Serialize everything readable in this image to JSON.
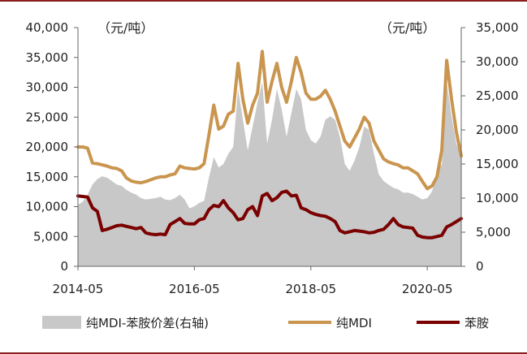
{
  "chart_data": {
    "type": "line",
    "title": "",
    "left_unit": "（元/吨）",
    "right_unit": "（元/吨）",
    "x_tick_labels": [
      "2014-05",
      "2016-05",
      "2018-05",
      "2020-05"
    ],
    "x_tick_months": [
      0,
      24,
      48,
      72
    ],
    "x_range_months": [
      0,
      79
    ],
    "y_left": {
      "min": 0,
      "max": 40000,
      "ticks": [
        0,
        5000,
        10000,
        15000,
        20000,
        25000,
        30000,
        35000,
        40000
      ],
      "tick_labels": [
        "0",
        "5,000",
        "10,000",
        "15,000",
        "20,000",
        "25,000",
        "30,000",
        "35,000",
        "40,000"
      ]
    },
    "y_right": {
      "min": 0,
      "max": 35000,
      "ticks": [
        0,
        5000,
        10000,
        15000,
        20000,
        25000,
        30000,
        35000
      ],
      "tick_labels": [
        "0",
        "5,000",
        "10,000",
        "15,000",
        "20,000",
        "25,000",
        "30,000",
        "35,000"
      ]
    },
    "colors": {
      "spread": "#c8c8c8",
      "pure_mdi": "#c9954f",
      "aniline": "#7b0000",
      "frame": "#8a1f1f",
      "axis": "#666666"
    },
    "series": [
      {
        "name": "纯MDI-苯胺价差(右轴)",
        "axis": "right",
        "style": "area",
        "color_key": "spread",
        "points": [
          [
            0,
            9000
          ],
          [
            1,
            9500
          ],
          [
            2,
            10500
          ],
          [
            3,
            12000
          ],
          [
            4,
            12800
          ],
          [
            5,
            13200
          ],
          [
            6,
            13000
          ],
          [
            7,
            12500
          ],
          [
            8,
            12000
          ],
          [
            9,
            11800
          ],
          [
            10,
            11200
          ],
          [
            11,
            10800
          ],
          [
            12,
            10500
          ],
          [
            13,
            10000
          ],
          [
            14,
            9800
          ],
          [
            15,
            9900
          ],
          [
            16,
            10000
          ],
          [
            17,
            10200
          ],
          [
            18,
            9800
          ],
          [
            19,
            9700
          ],
          [
            20,
            10000
          ],
          [
            21,
            10500
          ],
          [
            22,
            9800
          ],
          [
            23,
            8500
          ],
          [
            24,
            8800
          ],
          [
            25,
            9300
          ],
          [
            26,
            9600
          ],
          [
            27,
            13000
          ],
          [
            28,
            16000
          ],
          [
            29,
            14500
          ],
          [
            30,
            15000
          ],
          [
            31,
            16500
          ],
          [
            32,
            17500
          ],
          [
            33,
            26000
          ],
          [
            34,
            21500
          ],
          [
            35,
            17000
          ],
          [
            36,
            20500
          ],
          [
            37,
            24000
          ],
          [
            38,
            27000
          ],
          [
            39,
            18000
          ],
          [
            40,
            21500
          ],
          [
            41,
            26000
          ],
          [
            42,
            23000
          ],
          [
            43,
            19000
          ],
          [
            44,
            22500
          ],
          [
            45,
            26000
          ],
          [
            46,
            24500
          ],
          [
            47,
            20000
          ],
          [
            48,
            18500
          ],
          [
            49,
            18000
          ],
          [
            50,
            19000
          ],
          [
            51,
            21500
          ],
          [
            52,
            22000
          ],
          [
            53,
            21500
          ],
          [
            54,
            19000
          ],
          [
            55,
            15000
          ],
          [
            56,
            14000
          ],
          [
            57,
            15500
          ],
          [
            58,
            17500
          ],
          [
            59,
            20500
          ],
          [
            60,
            20000
          ],
          [
            61,
            16500
          ],
          [
            62,
            13500
          ],
          [
            63,
            12500
          ],
          [
            64,
            12000
          ],
          [
            65,
            11500
          ],
          [
            66,
            11300
          ],
          [
            67,
            10800
          ],
          [
            68,
            10800
          ],
          [
            69,
            10600
          ],
          [
            70,
            10200
          ],
          [
            71,
            9800
          ],
          [
            72,
            10000
          ],
          [
            73,
            11000
          ],
          [
            74,
            14000
          ],
          [
            75,
            15000
          ],
          [
            76,
            27000
          ],
          [
            77,
            22000
          ],
          [
            78,
            18000
          ],
          [
            79,
            16000
          ]
        ]
      },
      {
        "name": "纯MDI",
        "axis": "left",
        "style": "line",
        "color_key": "pure_mdi",
        "points": [
          [
            0,
            20000
          ],
          [
            1,
            20000
          ],
          [
            2,
            19800
          ],
          [
            3,
            17300
          ],
          [
            4,
            17200
          ],
          [
            5,
            17000
          ],
          [
            6,
            16800
          ],
          [
            7,
            16500
          ],
          [
            8,
            16400
          ],
          [
            9,
            16000
          ],
          [
            10,
            14800
          ],
          [
            11,
            14300
          ],
          [
            12,
            14100
          ],
          [
            13,
            14000
          ],
          [
            14,
            14200
          ],
          [
            15,
            14500
          ],
          [
            16,
            14800
          ],
          [
            17,
            15000
          ],
          [
            18,
            15000
          ],
          [
            19,
            15300
          ],
          [
            20,
            15500
          ],
          [
            21,
            16800
          ],
          [
            22,
            16500
          ],
          [
            23,
            16400
          ],
          [
            24,
            16300
          ],
          [
            25,
            16500
          ],
          [
            26,
            17200
          ],
          [
            27,
            22000
          ],
          [
            28,
            27000
          ],
          [
            29,
            23000
          ],
          [
            30,
            23500
          ],
          [
            31,
            25500
          ],
          [
            32,
            26000
          ],
          [
            33,
            34000
          ],
          [
            34,
            28000
          ],
          [
            35,
            24000
          ],
          [
            36,
            27000
          ],
          [
            37,
            29000
          ],
          [
            38,
            36000
          ],
          [
            39,
            27500
          ],
          [
            40,
            31000
          ],
          [
            41,
            34000
          ],
          [
            42,
            30000
          ],
          [
            43,
            27500
          ],
          [
            44,
            31000
          ],
          [
            45,
            35000
          ],
          [
            46,
            32500
          ],
          [
            47,
            29000
          ],
          [
            48,
            28000
          ],
          [
            49,
            28000
          ],
          [
            50,
            28500
          ],
          [
            51,
            29500
          ],
          [
            52,
            28000
          ],
          [
            53,
            26000
          ],
          [
            54,
            23500
          ],
          [
            55,
            21000
          ],
          [
            56,
            20000
          ],
          [
            57,
            21500
          ],
          [
            58,
            23000
          ],
          [
            59,
            25000
          ],
          [
            60,
            24000
          ],
          [
            61,
            21000
          ],
          [
            62,
            19500
          ],
          [
            63,
            18000
          ],
          [
            64,
            17500
          ],
          [
            65,
            17200
          ],
          [
            66,
            17000
          ],
          [
            67,
            16500
          ],
          [
            68,
            16500
          ],
          [
            69,
            16000
          ],
          [
            70,
            15500
          ],
          [
            71,
            14200
          ],
          [
            72,
            13000
          ],
          [
            73,
            13500
          ],
          [
            74,
            15000
          ],
          [
            75,
            19500
          ],
          [
            76,
            34500
          ],
          [
            77,
            28000
          ],
          [
            78,
            22500
          ],
          [
            79,
            18500
          ]
        ]
      },
      {
        "name": "苯胺",
        "axis": "left",
        "style": "line",
        "color_key": "aniline",
        "points": [
          [
            0,
            11800
          ],
          [
            1,
            11700
          ],
          [
            2,
            11600
          ],
          [
            3,
            9800
          ],
          [
            4,
            9200
          ],
          [
            5,
            6000
          ],
          [
            6,
            6200
          ],
          [
            7,
            6500
          ],
          [
            8,
            6800
          ],
          [
            9,
            6900
          ],
          [
            10,
            6700
          ],
          [
            11,
            6500
          ],
          [
            12,
            6300
          ],
          [
            13,
            6500
          ],
          [
            14,
            5600
          ],
          [
            15,
            5400
          ],
          [
            16,
            5300
          ],
          [
            17,
            5400
          ],
          [
            18,
            5300
          ],
          [
            19,
            7000
          ],
          [
            20,
            7500
          ],
          [
            21,
            8000
          ],
          [
            22,
            7200
          ],
          [
            23,
            7100
          ],
          [
            24,
            7100
          ],
          [
            25,
            7800
          ],
          [
            26,
            8000
          ],
          [
            27,
            9500
          ],
          [
            28,
            10200
          ],
          [
            29,
            10000
          ],
          [
            30,
            11000
          ],
          [
            31,
            9800
          ],
          [
            32,
            9000
          ],
          [
            33,
            7800
          ],
          [
            34,
            8000
          ],
          [
            35,
            9500
          ],
          [
            36,
            10000
          ],
          [
            37,
            8500
          ],
          [
            38,
            11800
          ],
          [
            39,
            12200
          ],
          [
            40,
            11000
          ],
          [
            41,
            11500
          ],
          [
            42,
            12400
          ],
          [
            43,
            12600
          ],
          [
            44,
            11800
          ],
          [
            45,
            11900
          ],
          [
            46,
            9800
          ],
          [
            47,
            9500
          ],
          [
            48,
            9000
          ],
          [
            49,
            8700
          ],
          [
            50,
            8500
          ],
          [
            51,
            8400
          ],
          [
            52,
            8000
          ],
          [
            53,
            7500
          ],
          [
            54,
            6000
          ],
          [
            55,
            5600
          ],
          [
            56,
            5800
          ],
          [
            57,
            6000
          ],
          [
            58,
            5900
          ],
          [
            59,
            5800
          ],
          [
            60,
            5600
          ],
          [
            61,
            5700
          ],
          [
            62,
            6000
          ],
          [
            63,
            6200
          ],
          [
            64,
            7000
          ],
          [
            65,
            8000
          ],
          [
            66,
            7000
          ],
          [
            67,
            6600
          ],
          [
            68,
            6500
          ],
          [
            69,
            6400
          ],
          [
            70,
            5200
          ],
          [
            71,
            4900
          ],
          [
            72,
            4800
          ],
          [
            73,
            4800
          ],
          [
            74,
            5000
          ],
          [
            75,
            5200
          ],
          [
            76,
            6600
          ],
          [
            77,
            7000
          ],
          [
            78,
            7500
          ],
          [
            79,
            8000
          ]
        ]
      }
    ],
    "legend": [
      "纯MDI-苯胺价差(右轴)",
      "纯MDI",
      "苯胺"
    ],
    "legend_position": "bottom"
  }
}
